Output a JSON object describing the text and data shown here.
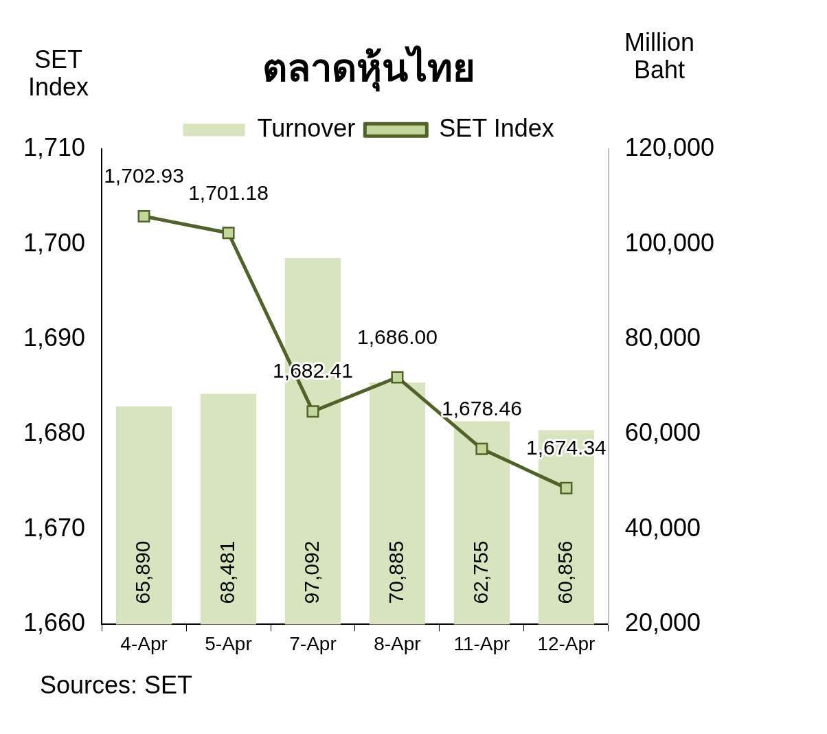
{
  "chart_data": {
    "type": "bar",
    "title": "ตลาดหุ้นไทย",
    "ylabel": "SET Index",
    "y2label": "Million Baht",
    "categories": [
      "4-Apr",
      "5-Apr",
      "7-Apr",
      "8-Apr",
      "11-Apr",
      "12-Apr"
    ],
    "series": [
      {
        "name": "Turnover",
        "axis": "y2",
        "color": "#d7e4bd",
        "values": [
          65890,
          68481,
          97092,
          70885,
          62755,
          60856
        ],
        "value_labels": [
          "65,890",
          "68,481",
          "97,092",
          "70,885",
          "62,755",
          "60,856"
        ]
      },
      {
        "name": "SET Index",
        "type": "line",
        "axis": "y",
        "color": "#4f6228",
        "values": [
          1702.93,
          1701.18,
          1682.41,
          1686.0,
          1678.46,
          1674.34
        ],
        "value_labels": [
          "1,702.93",
          "1,701.18",
          "1,682.41",
          "1,686.00",
          "1,678.46",
          "1,674.34"
        ]
      }
    ],
    "ylim": [
      1660,
      1710
    ],
    "yticks": [
      {
        "value": 1660,
        "label": "1,660"
      },
      {
        "value": 1670,
        "label": "1,670"
      },
      {
        "value": 1680,
        "label": "1,680"
      },
      {
        "value": 1690,
        "label": "1,690"
      },
      {
        "value": 1700,
        "label": "1,700"
      },
      {
        "value": 1710,
        "label": "1,710"
      }
    ],
    "y2lim": [
      20000,
      120000
    ],
    "y2ticks": [
      {
        "value": 20000,
        "label": "20,000"
      },
      {
        "value": 40000,
        "label": "40,000"
      },
      {
        "value": 60000,
        "label": "60,000"
      },
      {
        "value": 80000,
        "label": "80,000"
      },
      {
        "value": 100000,
        "label": "100,000"
      },
      {
        "value": 120000,
        "label": "120,000"
      }
    ],
    "marker": "square",
    "line_style": "solid",
    "legend": "top",
    "grid": false,
    "annotations": [
      "Sources: SET"
    ]
  }
}
